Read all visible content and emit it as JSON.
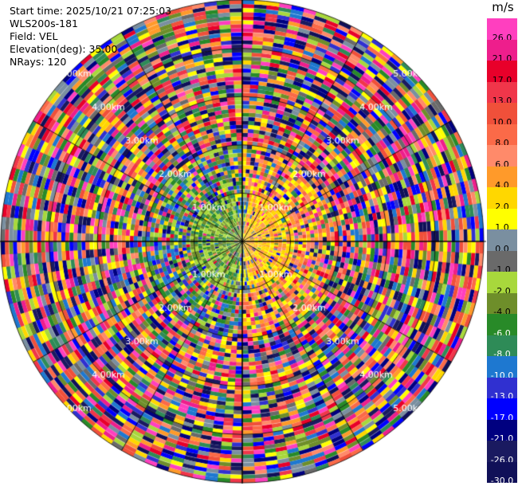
{
  "header": {
    "start_time": "Start time: 2025/10/21 07:25:03",
    "instrument": "WLS200s-181",
    "field": "Field: VEL",
    "elevation": "Elevation(deg): 35.00",
    "nrays": "NRays: 120"
  },
  "colorbar": {
    "unit": "m/s",
    "ticks": [
      "26.0",
      "21.0",
      "17.0",
      "13.0",
      "10.0",
      "8.0",
      "6.0",
      "4.0",
      "2.0",
      "1.0",
      "0.0",
      "-1.0",
      "-2.0",
      "-4.0",
      "-6.0",
      "-8.0",
      "-10.0",
      "-13.0",
      "-17.0",
      "-21.0",
      "-26.0",
      "-30.0"
    ],
    "colors": [
      "#ff3fbf",
      "#ee1e8c",
      "#e8002a",
      "#f0364a",
      "#f0503a",
      "#fb6a48",
      "#ff8a6a",
      "#ff9a2a",
      "#ffd700",
      "#ffff00",
      "#7a8fa0",
      "#6a6a6a",
      "#a8d83c",
      "#6e8e2a",
      "#288a28",
      "#2e8b57",
      "#1e78d0",
      "#3030d0",
      "#0000ff",
      "#000080",
      "#1a1a60",
      "#101058"
    ]
  },
  "chart_data": {
    "type": "heatmap",
    "title": "",
    "field": "VEL",
    "unit": "m/s",
    "rays": 120,
    "range_rings_km": [
      1.0,
      2.0,
      3.0,
      4.0,
      5.0
    ],
    "ring_labels": [
      "1.00km",
      "2.00km",
      "3.00km",
      "4.00km",
      "5.00km"
    ],
    "max_range_km": 5.0,
    "value_range": [
      -30.0,
      26.0
    ],
    "description_of_pattern": "inner ~1 km: positive velocities (yellow/orange) to east, negative (green) to west; beyond: noisy mix across full scale"
  }
}
